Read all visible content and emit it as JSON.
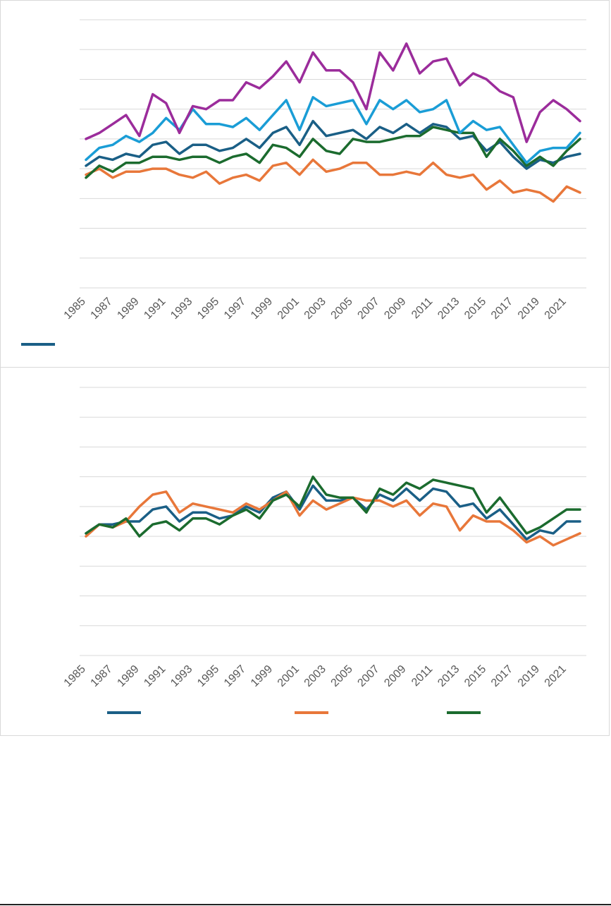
{
  "charts": {
    "top": {
      "chart_data": {
        "type": "line",
        "title": "",
        "xlabel": "",
        "ylabel": "",
        "grid": true,
        "legend_position": "bottom-left",
        "x_ticks": [
          "1985",
          "1987",
          "1989",
          "1991",
          "1993",
          "1995",
          "1997",
          "1999",
          "2001",
          "2003",
          "2005",
          "2007",
          "2009",
          "2011",
          "2013",
          "2015",
          "2017",
          "2019",
          "2021"
        ],
        "x": [
          1985,
          1986,
          1987,
          1988,
          1989,
          1990,
          1991,
          1992,
          1993,
          1994,
          1995,
          1996,
          1997,
          1998,
          1999,
          2000,
          2001,
          2002,
          2003,
          2004,
          2005,
          2006,
          2007,
          2008,
          2009,
          2010,
          2011,
          2012,
          2013,
          2014,
          2015,
          2016,
          2017,
          2018,
          2019,
          2020,
          2021,
          2022
        ],
        "ylim": [
          0,
          9
        ],
        "series": [
          {
            "color": "#1a5f86",
            "values": [
              4.1,
              4.4,
              4.3,
              4.5,
              4.4,
              4.8,
              4.9,
              4.5,
              4.8,
              4.8,
              4.6,
              4.7,
              5.0,
              4.7,
              5.2,
              5.4,
              4.8,
              5.6,
              5.1,
              5.2,
              5.3,
              5.0,
              5.4,
              5.2,
              5.5,
              5.2,
              5.5,
              5.4,
              5.0,
              5.1,
              4.6,
              4.9,
              4.4,
              4.0,
              4.3,
              4.2,
              4.4,
              4.5
            ]
          },
          {
            "color": "#e8773a",
            "values": [
              3.8,
              4.0,
              3.7,
              3.9,
              3.9,
              4.0,
              4.0,
              3.8,
              3.7,
              3.9,
              3.5,
              3.7,
              3.8,
              3.6,
              4.1,
              4.2,
              3.8,
              4.3,
              3.9,
              4.0,
              4.2,
              4.2,
              3.8,
              3.8,
              3.9,
              3.8,
              4.2,
              3.8,
              3.7,
              3.8,
              3.3,
              3.6,
              3.2,
              3.3,
              3.2,
              2.9,
              3.4,
              3.2
            ]
          },
          {
            "color": "#1b6b2e",
            "values": [
              3.7,
              4.1,
              3.9,
              4.2,
              4.2,
              4.4,
              4.4,
              4.3,
              4.4,
              4.4,
              4.2,
              4.4,
              4.5,
              4.2,
              4.8,
              4.7,
              4.4,
              5.0,
              4.6,
              4.5,
              5.0,
              4.9,
              4.9,
              5.0,
              5.1,
              5.1,
              5.4,
              5.3,
              5.2,
              5.2,
              4.4,
              5.0,
              4.6,
              4.1,
              4.4,
              4.1,
              4.6,
              5.0
            ]
          },
          {
            "color": "#1a9dd6",
            "values": [
              4.3,
              4.7,
              4.8,
              5.1,
              4.9,
              5.2,
              5.7,
              5.3,
              6.0,
              5.5,
              5.5,
              5.4,
              5.7,
              5.3,
              5.8,
              6.3,
              5.3,
              6.4,
              6.1,
              6.2,
              6.3,
              5.5,
              6.3,
              6.0,
              6.3,
              5.9,
              6.0,
              6.3,
              5.2,
              5.6,
              5.3,
              5.4,
              4.8,
              4.2,
              4.6,
              4.7,
              4.7,
              5.2
            ]
          },
          {
            "color": "#9b2c9b",
            "values": [
              5.0,
              5.2,
              5.5,
              5.8,
              5.1,
              6.5,
              6.2,
              5.2,
              6.1,
              6.0,
              6.3,
              6.3,
              6.9,
              6.7,
              7.1,
              7.6,
              6.9,
              7.9,
              7.3,
              7.3,
              6.9,
              6.0,
              7.9,
              7.3,
              8.2,
              7.2,
              7.6,
              7.7,
              6.8,
              7.2,
              7.0,
              6.6,
              6.4,
              4.9,
              5.9,
              6.3,
              6.0,
              5.6
            ]
          }
        ],
        "legend": [
          {
            "color": "#1a5f86",
            "label": ""
          }
        ]
      }
    },
    "bottom": {
      "chart_data": {
        "type": "line",
        "title": "",
        "xlabel": "",
        "ylabel": "",
        "grid": true,
        "legend_position": "bottom",
        "x_ticks": [
          "1985",
          "1987",
          "1989",
          "1991",
          "1993",
          "1995",
          "1997",
          "1999",
          "2001",
          "2003",
          "2005",
          "2007",
          "2009",
          "2011",
          "2013",
          "2015",
          "2017",
          "2019",
          "2021"
        ],
        "x": [
          1985,
          1986,
          1987,
          1988,
          1989,
          1990,
          1991,
          1992,
          1993,
          1994,
          1995,
          1996,
          1997,
          1998,
          1999,
          2000,
          2001,
          2002,
          2003,
          2004,
          2005,
          2006,
          2007,
          2008,
          2009,
          2010,
          2011,
          2012,
          2013,
          2014,
          2015,
          2016,
          2017,
          2018,
          2019,
          2020,
          2021,
          2022
        ],
        "ylim": [
          0,
          9
        ],
        "series": [
          {
            "color": "#1a5f86",
            "values": [
              4.1,
              4.4,
              4.4,
              4.5,
              4.5,
              4.9,
              5.0,
              4.5,
              4.8,
              4.8,
              4.6,
              4.7,
              5.0,
              4.8,
              5.3,
              5.5,
              4.9,
              5.7,
              5.2,
              5.2,
              5.3,
              4.9,
              5.4,
              5.2,
              5.6,
              5.2,
              5.6,
              5.5,
              5.0,
              5.1,
              4.6,
              4.9,
              4.4,
              3.9,
              4.2,
              4.1,
              4.5,
              4.5
            ]
          },
          {
            "color": "#e8773a",
            "values": [
              4.0,
              4.4,
              4.3,
              4.5,
              5.0,
              5.4,
              5.5,
              4.8,
              5.1,
              5.0,
              4.9,
              4.8,
              5.1,
              4.9,
              5.2,
              5.5,
              4.7,
              5.2,
              4.9,
              5.1,
              5.3,
              5.2,
              5.2,
              5.0,
              5.2,
              4.7,
              5.1,
              5.0,
              4.2,
              4.7,
              4.5,
              4.5,
              4.2,
              3.8,
              4.0,
              3.7,
              3.9,
              4.1
            ]
          },
          {
            "color": "#1b6b2e",
            "values": [
              4.1,
              4.4,
              4.3,
              4.6,
              4.0,
              4.4,
              4.5,
              4.2,
              4.6,
              4.6,
              4.4,
              4.7,
              4.9,
              4.6,
              5.2,
              5.4,
              5.0,
              6.0,
              5.4,
              5.3,
              5.3,
              4.8,
              5.6,
              5.4,
              5.8,
              5.6,
              5.9,
              5.8,
              5.7,
              5.6,
              4.8,
              5.3,
              4.7,
              4.1,
              4.3,
              4.6,
              4.9,
              4.9
            ]
          }
        ],
        "legend": [
          {
            "color": "#1a5f86",
            "label": ""
          },
          {
            "color": "#e8773a",
            "label": ""
          },
          {
            "color": "#1b6b2e",
            "label": ""
          }
        ]
      }
    }
  }
}
